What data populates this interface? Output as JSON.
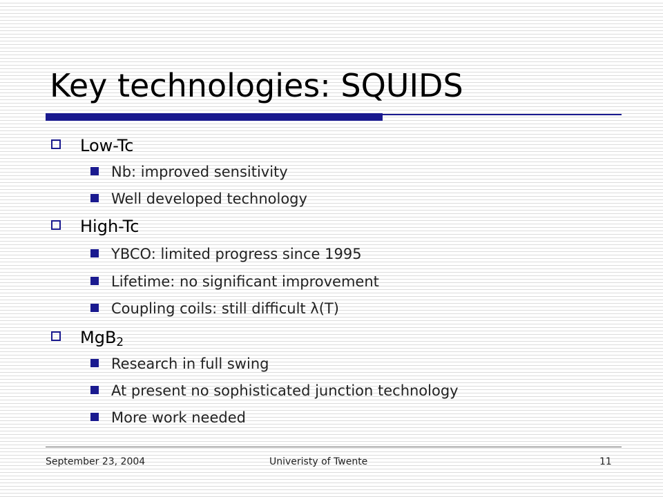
{
  "title": "Key technologies: SQUIDS",
  "sections": [
    {
      "heading": "Low-Tc",
      "items": [
        "Nb: improved sensitivity",
        "Well developed technology"
      ]
    },
    {
      "heading": "High-Tc",
      "items": [
        "YBCO: limited progress since 1995",
        "Lifetime: no significant improvement",
        "Coupling coils: still difficult λ(T)"
      ]
    },
    {
      "heading_base": "MgB",
      "heading_sub": "2",
      "items": [
        "Research in full swing",
        "At present no sophisticated junction technology",
        "More work needed"
      ]
    }
  ],
  "footer": {
    "date": "September 23, 2004",
    "organization": "Univeristy of Twente",
    "page_number": "11"
  },
  "colors": {
    "accent": "#1a1a8f",
    "stripe": "#dcdcdc",
    "background": "#ffffff"
  }
}
